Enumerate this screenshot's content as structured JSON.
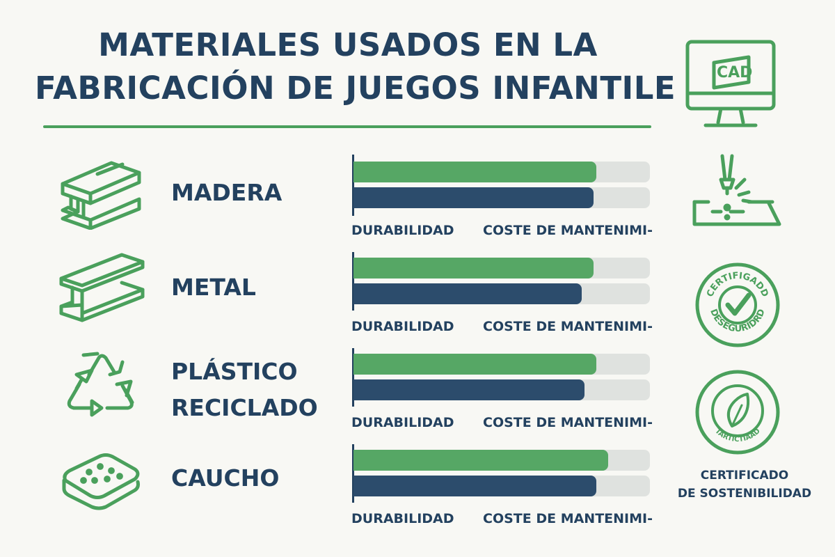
{
  "title_lines": [
    "MATERIALES USADOS EN LA",
    "FABRICACIÓN DE JUEGOS INFANTILE"
  ],
  "colors": {
    "accent": "#4aa05c",
    "durability": "#56a765",
    "cost": "#2c4c6c",
    "track": "#dfe2df",
    "text": "#23415f"
  },
  "chart_data": {
    "type": "bar",
    "orientation": "horizontal",
    "categories": [
      "MADERA",
      "METAL",
      "PLÁSTICO RECICLADO",
      "CAUCHO"
    ],
    "category_lines": [
      [
        "MADERA"
      ],
      [
        "METAL"
      ],
      [
        "PLÁSTICO",
        "RECICLADO"
      ],
      [
        "CAUCHO"
      ]
    ],
    "metric_labels": [
      "DURABILIDAD",
      "COSTE DE MANTENIMI-"
    ],
    "series": [
      {
        "name": "DURABILIDAD",
        "color": "#56a765",
        "values": [
          82,
          81,
          82,
          86
        ]
      },
      {
        "name": "COSTE DE MANTENIMI-",
        "color": "#2c4c6c",
        "values": [
          81,
          77,
          78,
          82
        ]
      }
    ],
    "xlim": [
      0,
      100
    ],
    "grid": false
  },
  "materials": [
    {
      "label_lines": [
        "MADERA"
      ],
      "icon": "wood-beam-icon",
      "metric_labels": [
        "DURABILIDAD",
        "COSTE DE MANTENIMI-"
      ]
    },
    {
      "label_lines": [
        "METAL"
      ],
      "icon": "steel-beam-icon",
      "metric_labels": [
        "DURABILIDAD",
        "COSTE DE MANTENIMI-"
      ]
    },
    {
      "label_lines": [
        "PLÁSTICO",
        "RECICLADO"
      ],
      "icon": "recycle-icon",
      "metric_labels": [
        "DURABILIDAD",
        "COSTE DE MANTENIMI-"
      ]
    },
    {
      "label_lines": [
        "CAUCHO"
      ],
      "icon": "rubber-mat-icon",
      "metric_labels": [
        "DURABILIDAD",
        "COSTE DE MANTENIMI-"
      ]
    }
  ],
  "side_icons": [
    {
      "icon": "cad-monitor-icon",
      "text": "CAD"
    },
    {
      "icon": "laser-cutter-icon"
    },
    {
      "icon": "safety-certificate-seal-icon",
      "text_top": "CERTIFIGADD",
      "text_bottom": "DESEGURIDRD"
    },
    {
      "icon": "sustainability-seal-icon",
      "text_bottom": "TARTICTIAAD"
    }
  ],
  "side_caption_lines": [
    "CERTIFICADO",
    "DE SOSTENIBILIDAD"
  ]
}
